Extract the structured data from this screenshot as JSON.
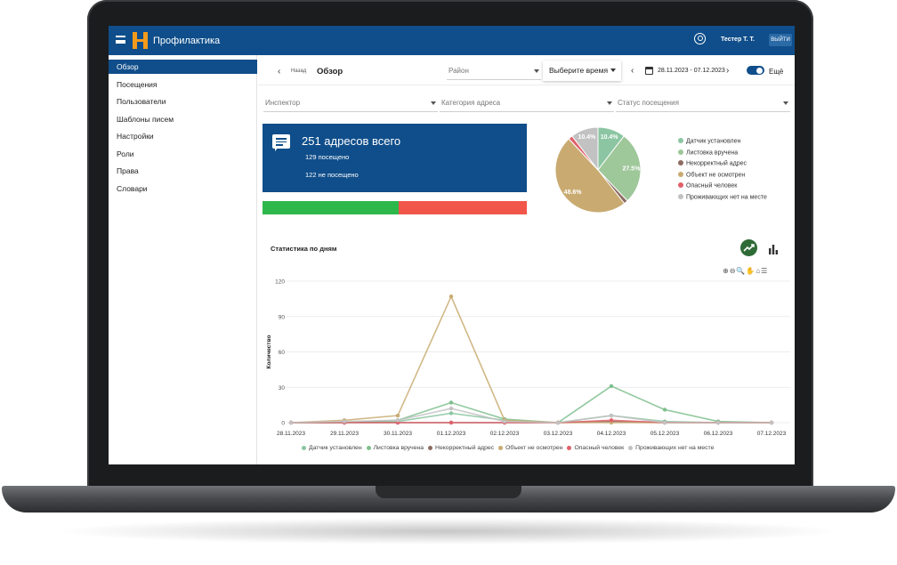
{
  "header": {
    "app_title": "Профилактика",
    "user_name": "Тестер Т. Т.",
    "logout_label": "ВЫЙТИ"
  },
  "sidebar": {
    "items": [
      {
        "label": "Обзор",
        "active": true
      },
      {
        "label": "Посещения"
      },
      {
        "label": "Пользователи"
      },
      {
        "label": "Шаблоны писем"
      },
      {
        "label": "Настройки"
      },
      {
        "label": "Роли"
      },
      {
        "label": "Права"
      },
      {
        "label": "Словари"
      }
    ]
  },
  "toolbar": {
    "back_label": "Назад",
    "page_title": "Обзор",
    "district_placeholder": "Район",
    "time_select_label": "Выберите время",
    "date_range": "28.11.2023 - 07.12.2023",
    "more_label": "Ещё"
  },
  "filters": {
    "inspector": "Инспектор",
    "address_category": "Категория адреса",
    "visit_status": "Статус посещения"
  },
  "summary": {
    "total": "251 адресов всего",
    "visited": "129 посещено",
    "not_visited": "122 не посещено",
    "visited_fraction": 0.514,
    "visited_color": "#2eb84b",
    "not_visited_color": "#f2564a"
  },
  "colors": {
    "primary": "#0f4e8a",
    "accent": "#f39a1a"
  },
  "pie": {
    "type": "pie",
    "labels": [
      "Датчик установлен",
      "Листовка вручена",
      "Некорректный адрес",
      "Объект не осмотрен",
      "Опасный человек",
      "Проживающих нет на месте"
    ],
    "values": [
      10.4,
      27.5,
      1.5,
      48.6,
      1.6,
      10.4
    ],
    "value_labels": [
      "10.4%",
      "27.5%",
      "",
      "48.6%",
      "",
      "10.4%"
    ],
    "colors": [
      "#8cc5a2",
      "#9ec79a",
      "#8d6b62",
      "#c9ab72",
      "#e0606a",
      "#c2c2c2"
    ]
  },
  "chart_data": {
    "type": "line",
    "title": "Статистика по дням",
    "ylabel": "Количество",
    "ylim": [
      0,
      120
    ],
    "yticks": [
      0,
      30,
      60,
      90,
      120
    ],
    "categories": [
      "28.11.2023",
      "29.11.2023",
      "30.11.2023",
      "01.12.2023",
      "02.12.2023",
      "03.12.2023",
      "04.12.2023",
      "05.12.2023",
      "06.12.2023",
      "07.12.2023"
    ],
    "series": [
      {
        "name": "Датчик установлен",
        "color": "#8cc5a2",
        "values": [
          0,
          0,
          1,
          8,
          2,
          0,
          6,
          1,
          0,
          0
        ]
      },
      {
        "name": "Листовка вручена",
        "color": "#7fbf8e",
        "values": [
          0,
          0,
          2,
          17,
          3,
          0,
          31,
          11,
          1,
          0
        ]
      },
      {
        "name": "Некорректный адрес",
        "color": "#8d6b62",
        "values": [
          0,
          0,
          0,
          0,
          0,
          0,
          1,
          0,
          0,
          0
        ]
      },
      {
        "name": "Объект не осмотрен",
        "color": "#c9ab72",
        "values": [
          0,
          2,
          6,
          107,
          2,
          0,
          0,
          0,
          0,
          0
        ]
      },
      {
        "name": "Опасный человек",
        "color": "#e0606a",
        "values": [
          0,
          0,
          0,
          0,
          0,
          0,
          2,
          0,
          0,
          0
        ]
      },
      {
        "name": "Проживающих нет на месте",
        "color": "#c2c2c2",
        "values": [
          0,
          1,
          2,
          12,
          1,
          0,
          6,
          0,
          0,
          0
        ]
      }
    ],
    "legend_position": "bottom",
    "grid": true
  },
  "icons": {
    "menu": "menu-icon",
    "user": "account-circle-icon",
    "chat": "chat-icon",
    "calendar": "calendar-icon",
    "line_chart": "line-chart-icon",
    "bar_chart": "bar-chart-icon",
    "tools": "⊕⊖🔍✋⌂☰"
  }
}
